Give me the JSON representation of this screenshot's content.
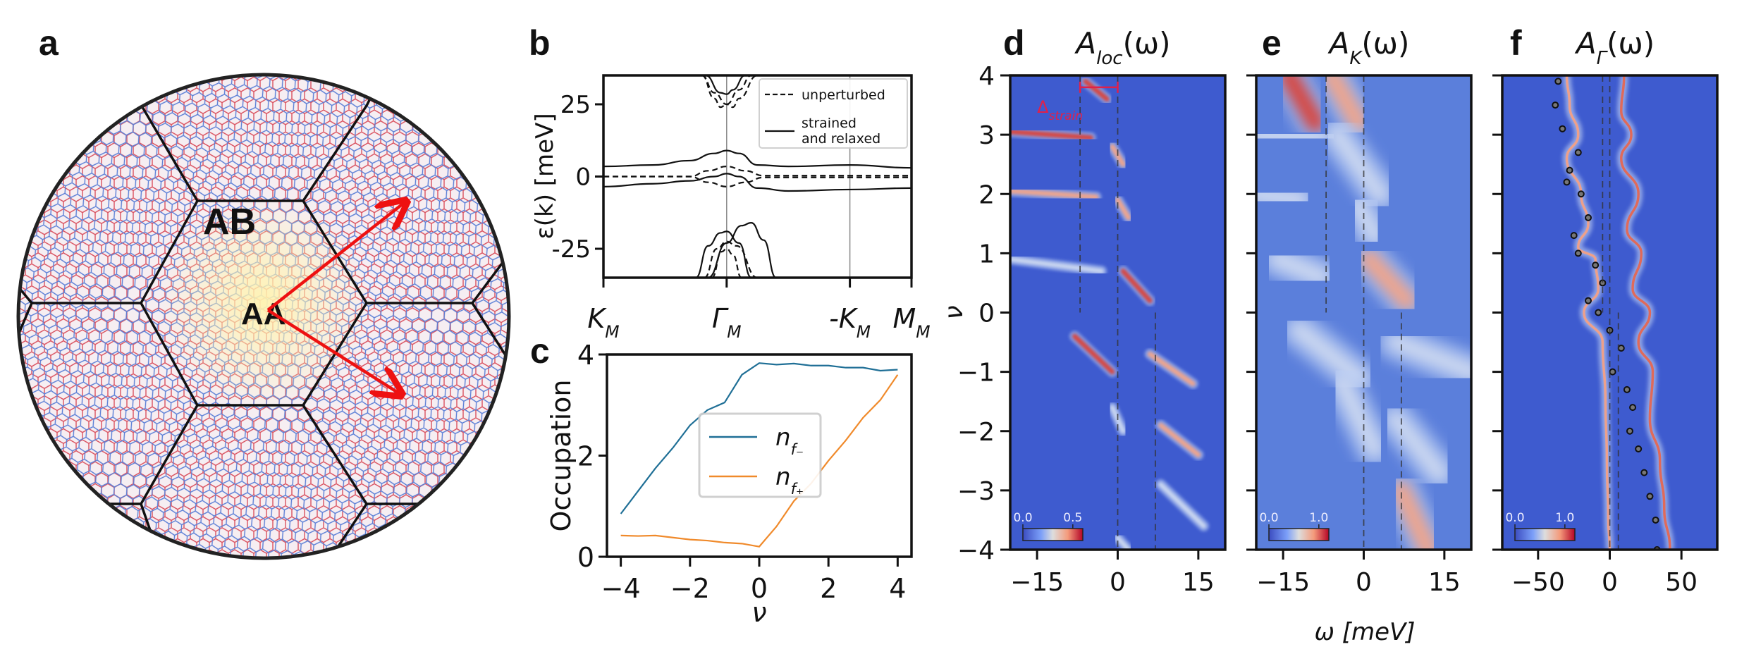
{
  "figure": {
    "panel_letters": [
      "a",
      "b",
      "c",
      "d",
      "e",
      "f"
    ],
    "panel_a": {
      "labels": {
        "ab": "AB",
        "aa": "AA"
      },
      "colors": {
        "lattice_red": "#d9515f",
        "lattice_blue": "#5b7fd6",
        "aa_glow": "#fff3b0",
        "arrow": "#ee1111",
        "border": "#222222"
      }
    },
    "colors": {
      "cmap_low": "#3b4cc0",
      "cmap_mid": "#dddddd",
      "cmap_high": "#b40426",
      "delta_strain": "#e0204a",
      "n_f_minus": "#1f6f96",
      "n_f_plus": "#f08a2b"
    }
  },
  "chart_data": [
    {
      "id": "b",
      "type": "line",
      "title": "",
      "xlabel": "",
      "ylabel": "ε(k) [meV]",
      "ylim": [
        -35,
        35
      ],
      "yticks": [
        -25,
        0,
        25
      ],
      "ytick_labels": [
        "-25",
        "0",
        "25"
      ],
      "xticks": [
        0,
        1,
        2,
        2.5
      ],
      "xtick_labels": [
        "K_M",
        "Γ_M",
        "-K_M",
        "M_M"
      ],
      "xlim": [
        0,
        2.5
      ],
      "vlines": [
        1,
        2
      ],
      "legend": {
        "placement": "top-right",
        "entries": [
          {
            "label": "unperturbed",
            "style": "dashed"
          },
          {
            "label": "strained\nand relaxed",
            "style": "solid"
          }
        ]
      },
      "series": [
        {
          "name": "strained and relaxed (upper flat)",
          "style": "solid",
          "x": [
            0,
            0.4,
            0.7,
            0.9,
            1.0,
            1.1,
            1.25,
            1.5,
            2.0,
            2.5
          ],
          "y": [
            3.5,
            4,
            5.5,
            8,
            9,
            8,
            4,
            3.5,
            4,
            3
          ]
        },
        {
          "name": "strained and relaxed (lower flat)",
          "style": "solid",
          "x": [
            0,
            0.4,
            0.7,
            0.9,
            1.0,
            1.1,
            1.25,
            1.5,
            2.0,
            2.5
          ],
          "y": [
            -3.5,
            -2.5,
            -1.5,
            0,
            1,
            0,
            -4,
            -5,
            -4.5,
            -4
          ]
        },
        {
          "name": "unperturbed (flat)",
          "style": "dashed",
          "x": [
            0,
            0.7,
            0.85,
            1.0,
            1.15,
            1.3,
            2.5
          ],
          "y": [
            0,
            0,
            2,
            3.5,
            2,
            0.3,
            0.3
          ]
        },
        {
          "name": "unperturbed (flat 2)",
          "style": "dashed",
          "x": [
            0,
            0.7,
            0.85,
            1.0,
            1.15,
            1.3,
            2.5
          ],
          "y": [
            0,
            0,
            -2,
            -3.5,
            -2,
            -0.3,
            -0.3
          ]
        },
        {
          "name": "unperturbed (conduction)",
          "style": "dashed",
          "x": [
            0.8,
            0.9,
            0.95,
            1.0,
            1.1,
            1.2
          ],
          "y": [
            35,
            27,
            24,
            25,
            30,
            35
          ]
        },
        {
          "name": "unperturbed (conduction 2)",
          "style": "dashed",
          "x": [
            0.8,
            0.9,
            1.0,
            1.05,
            1.1,
            1.25
          ],
          "y": [
            35,
            29,
            25,
            24,
            27,
            35
          ]
        },
        {
          "name": "strained (conduction)",
          "style": "solid",
          "x": [
            0.83,
            0.95,
            1.0,
            1.05,
            1.15
          ],
          "y": [
            35,
            29,
            28.5,
            30,
            35
          ]
        },
        {
          "name": "unperturbed (valence)",
          "style": "dashed",
          "x": [
            0.82,
            0.92,
            1.0,
            1.08,
            1.25
          ],
          "y": [
            -35,
            -25,
            -22.5,
            -24,
            -35
          ]
        },
        {
          "name": "unperturbed (valence 2)",
          "style": "dashed",
          "x": [
            0.88,
            0.96,
            1.0,
            1.05,
            1.12
          ],
          "y": [
            -35,
            -26,
            -25,
            -27,
            -35
          ]
        },
        {
          "name": "strained (valence 1)",
          "style": "solid",
          "x": [
            0.75,
            0.85,
            0.95,
            1.0,
            1.1,
            1.2
          ],
          "y": [
            -35,
            -24,
            -19.5,
            -19,
            -23,
            -35
          ]
        },
        {
          "name": "strained (valence 2)",
          "style": "solid",
          "x": [
            0.85,
            1.0,
            1.12,
            1.2,
            1.3,
            1.4
          ],
          "y": [
            -35,
            -23,
            -17,
            -16,
            -22,
            -35
          ]
        }
      ]
    },
    {
      "id": "c",
      "type": "line",
      "title": "",
      "xlabel": "ν",
      "ylabel": "Occupation",
      "xlim": [
        -4.4,
        4.4
      ],
      "ylim": [
        0,
        4
      ],
      "xticks": [
        -4,
        -2,
        0,
        2,
        4
      ],
      "xtick_labels": [
        "−4",
        "−2",
        "0",
        "2",
        "4"
      ],
      "yticks": [
        0,
        2,
        4
      ],
      "ytick_labels": [
        "0",
        "2",
        "4"
      ],
      "legend": {
        "placement": "center",
        "entries": [
          {
            "label": "n_f−",
            "sub": "f−"
          },
          {
            "label": "n_f+",
            "sub": "f+"
          }
        ]
      },
      "series": [
        {
          "name": "n_f−",
          "x": [
            -4,
            -3.5,
            -3,
            -2.5,
            -2,
            -1.5,
            -1,
            -0.5,
            0,
            0.5,
            1,
            1.5,
            2,
            2.5,
            3,
            3.5,
            4
          ],
          "y": [
            0.85,
            1.3,
            1.75,
            2.15,
            2.6,
            2.9,
            3.05,
            3.6,
            3.83,
            3.8,
            3.82,
            3.78,
            3.78,
            3.74,
            3.74,
            3.68,
            3.7
          ]
        },
        {
          "name": "n_f+",
          "x": [
            -4,
            -3.5,
            -3,
            -2.5,
            -2,
            -1.5,
            -1,
            -0.5,
            0,
            0.5,
            1,
            1.5,
            2,
            2.5,
            3,
            3.5,
            4
          ],
          "y": [
            0.42,
            0.41,
            0.42,
            0.38,
            0.34,
            0.32,
            0.28,
            0.26,
            0.2,
            0.6,
            1.1,
            1.45,
            1.9,
            2.3,
            2.75,
            3.1,
            3.6
          ]
        }
      ]
    },
    {
      "id": "d",
      "type": "heatmap",
      "title": "A_loc(ω)",
      "title_main": "A",
      "title_sub": "loc",
      "title_tail": "(ω)",
      "xlabel": "",
      "ylabel": "ν",
      "xlim": [
        -20,
        20
      ],
      "ylim": [
        -4,
        4
      ],
      "xticks": [
        -15,
        0,
        15
      ],
      "xtick_labels": [
        "−15",
        "0",
        "15"
      ],
      "yticks": [
        -4,
        -3,
        -2,
        -1,
        0,
        1,
        2,
        3,
        4
      ],
      "ytick_labels": [
        "−4",
        "−3",
        "−2",
        "−1",
        "0",
        "1",
        "2",
        "3",
        "4"
      ],
      "colorbar": {
        "min_label": "0.0",
        "max_label": "0.5",
        "range": [
          0,
          0.6
        ]
      },
      "annotation": {
        "text": "Δ",
        "sub": "strain",
        "x_range": [
          -7,
          0
        ],
        "y": 3.8
      },
      "dashed_vlines": [
        {
          "x": -7,
          "y_range": [
            0,
            4
          ]
        },
        {
          "x": 0,
          "y_range": [
            -4,
            4
          ]
        },
        {
          "x": 7,
          "y_range": [
            -4,
            0
          ]
        }
      ],
      "features": [
        {
          "x0": -20,
          "y0": 3.05,
          "x1": -5,
          "y1": 2.95,
          "intensity": 0.5
        },
        {
          "x0": -6,
          "y0": 3.9,
          "x1": -2,
          "y1": 3.6,
          "intensity": 0.6
        },
        {
          "x0": -20,
          "y0": 2.05,
          "x1": -4,
          "y1": 1.95,
          "intensity": 0.45
        },
        {
          "x0": -1,
          "y0": 2.8,
          "x1": 1,
          "y1": 2.5,
          "intensity": 0.35
        },
        {
          "x0": 0,
          "y0": 1.9,
          "x1": 2,
          "y1": 1.6,
          "intensity": 0.35
        },
        {
          "x0": -20,
          "y0": 0.9,
          "x1": -3,
          "y1": 0.7,
          "intensity": 0.3
        },
        {
          "x0": 1,
          "y0": 0.7,
          "x1": 6,
          "y1": 0.2,
          "intensity": 0.6
        },
        {
          "x0": -8,
          "y0": -0.4,
          "x1": -1,
          "y1": -1.0,
          "intensity": 0.5
        },
        {
          "x0": 6,
          "y0": -0.7,
          "x1": 14,
          "y1": -1.2,
          "intensity": 0.4
        },
        {
          "x0": -1,
          "y0": -1.6,
          "x1": 1,
          "y1": -2.0,
          "intensity": 0.3
        },
        {
          "x0": 8,
          "y0": -1.9,
          "x1": 15,
          "y1": -2.4,
          "intensity": 0.35
        },
        {
          "x0": 8,
          "y0": -2.9,
          "x1": 16,
          "y1": -3.6,
          "intensity": 0.3
        },
        {
          "x0": 0,
          "y0": -3.8,
          "x1": 2,
          "y1": -4.0,
          "intensity": 0.3
        }
      ]
    },
    {
      "id": "e",
      "type": "heatmap",
      "title": "A_K_M(ω)",
      "title_main": "A",
      "title_sub": "K_M",
      "title_tail": "(ω)",
      "xlabel": "ω [meV]",
      "ylabel": "",
      "xlim": [
        -20,
        20
      ],
      "ylim": [
        -4,
        4
      ],
      "xticks": [
        -15,
        0,
        15
      ],
      "xtick_labels": [
        "−15",
        "0",
        "15"
      ],
      "yticks": [
        -4,
        -3,
        -2,
        -1,
        0,
        1,
        2,
        3,
        4
      ],
      "colorbar": {
        "min_label": "0.0",
        "max_label": "1.0",
        "range": [
          0,
          1.2
        ]
      },
      "dashed_vlines": [
        {
          "x": -7,
          "y_range": [
            0,
            4
          ]
        },
        {
          "x": 0,
          "y_range": [
            -4,
            4
          ]
        },
        {
          "x": 7,
          "y_range": [
            -4,
            0
          ]
        }
      ],
      "features": [
        {
          "x0": -14,
          "y0": 4.0,
          "x1": -9,
          "y1": 3.2,
          "intensity": 1.0
        },
        {
          "x0": -6,
          "y0": 4.0,
          "x1": -1,
          "y1": 3.2,
          "intensity": 0.9
        },
        {
          "x0": -20,
          "y0": 3.0,
          "x1": -8,
          "y1": 2.95,
          "intensity": 0.4
        },
        {
          "x0": -5,
          "y0": 3.0,
          "x1": 3,
          "y1": 2.0,
          "intensity": 0.5
        },
        {
          "x0": -20,
          "y0": 2.0,
          "x1": -12,
          "y1": 1.9,
          "intensity": 0.4
        },
        {
          "x0": -1,
          "y0": 1.8,
          "x1": 2,
          "y1": 1.3,
          "intensity": 0.6
        },
        {
          "x0": -16,
          "y0": 0.9,
          "x1": -8,
          "y1": 0.6,
          "intensity": 0.4
        },
        {
          "x0": 1,
          "y0": 0.9,
          "x1": 8,
          "y1": 0.2,
          "intensity": 0.8
        },
        {
          "x0": -12,
          "y0": -0.3,
          "x1": -1,
          "y1": -1.1,
          "intensity": 0.6
        },
        {
          "x0": 6,
          "y0": -0.5,
          "x1": 20,
          "y1": -1.0,
          "intensity": 0.4
        },
        {
          "x0": -4,
          "y0": -1.2,
          "x1": 2,
          "y1": -2.3,
          "intensity": 0.4
        },
        {
          "x0": 6,
          "y0": -1.8,
          "x1": 14,
          "y1": -2.7,
          "intensity": 0.4
        },
        {
          "x0": 7,
          "y0": -3.0,
          "x1": 12,
          "y1": -4.0,
          "intensity": 0.7
        }
      ]
    },
    {
      "id": "f",
      "type": "heatmap",
      "title": "A_Γ_M(ω)",
      "title_main": "A",
      "title_sub": "Γ_M",
      "title_tail": "(ω)",
      "xlabel": "",
      "ylabel": "",
      "xlim": [
        -75,
        75
      ],
      "ylim": [
        -4,
        4
      ],
      "xticks": [
        -50,
        0,
        50
      ],
      "xtick_labels": [
        "−50",
        "0",
        "50"
      ],
      "yticks": [
        -4,
        -3,
        -2,
        -1,
        0,
        1,
        2,
        3,
        4
      ],
      "colorbar": {
        "min_label": "0.0",
        "max_label": "1.0",
        "range": [
          0,
          1.2
        ]
      },
      "dashed_vlines": [
        {
          "x": -5,
          "y_range": [
            0,
            4
          ]
        },
        {
          "x": 0,
          "y_range": [
            -4,
            4
          ]
        },
        {
          "x": 6,
          "y_range": [
            -4,
            0
          ]
        }
      ],
      "curves": [
        {
          "name": "band 1",
          "intensity": 0.8,
          "x": [
            -30,
            -28,
            -22,
            -30,
            -20,
            -15,
            -22,
            -10,
            -8,
            -18,
            -5,
            -3,
            -2,
            -1,
            0
          ],
          "y": [
            4,
            3.5,
            3,
            2.6,
            2,
            1.5,
            1.1,
            0.9,
            0.4,
            0,
            -0.5,
            -1.5,
            -2.5,
            -3.5,
            -4
          ]
        },
        {
          "name": "band 2",
          "intensity": 1.0,
          "x": [
            10,
            8,
            15,
            8,
            20,
            12,
            22,
            16,
            28,
            20,
            30,
            28,
            35,
            38,
            42
          ],
          "y": [
            4,
            3.4,
            3,
            2.6,
            2,
            1.4,
            1,
            0.4,
            0,
            -0.5,
            -1,
            -1.8,
            -2.5,
            -3.3,
            -4
          ]
        },
        {
          "name": "dots",
          "intensity": 0,
          "x": [
            -36,
            -38,
            -33,
            -22,
            -28,
            -30,
            -20,
            -15,
            -25,
            -22,
            -10,
            -5,
            -15,
            -8,
            0,
            8,
            2,
            12,
            16,
            14,
            20,
            24,
            28,
            32,
            33
          ],
          "y": [
            3.9,
            3.5,
            3.1,
            2.7,
            2.4,
            2.2,
            2.0,
            1.6,
            1.3,
            1.0,
            0.8,
            0.5,
            0.2,
            0,
            -0.3,
            -0.6,
            -1.0,
            -1.3,
            -1.6,
            -2.0,
            -2.3,
            -2.7,
            -3.1,
            -3.5,
            -4
          ]
        }
      ]
    }
  ]
}
